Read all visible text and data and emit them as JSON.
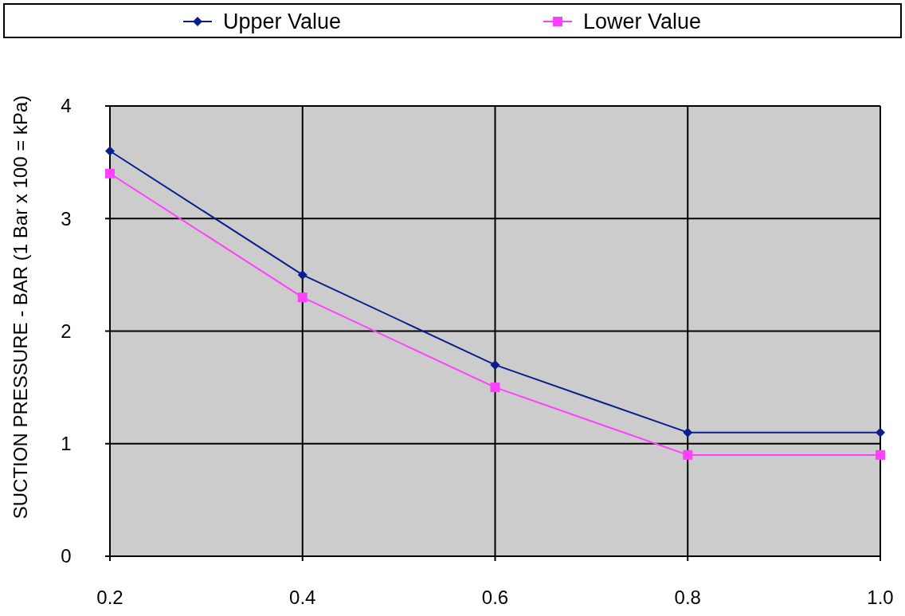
{
  "chart_data": {
    "type": "line",
    "ylabel": "SUCTION PRESSURE - BAR (1 Bar x 100 = kPa)",
    "x": [
      0.2,
      0.4,
      0.6,
      0.8,
      1.0
    ],
    "series": [
      {
        "name": "Upper Value",
        "color": "#0a1e8c",
        "marker": "diamond",
        "values": [
          3.6,
          2.5,
          1.7,
          1.1,
          1.1
        ]
      },
      {
        "name": "Lower Value",
        "color": "#ff40ff",
        "marker": "square",
        "values": [
          3.4,
          2.3,
          1.5,
          0.9,
          0.9
        ]
      }
    ],
    "xlim": [
      0.2,
      1.0
    ],
    "xticks": [
      0.2,
      0.4,
      0.6,
      0.8,
      {
        "value": 1.0,
        "label": "1.0"
      }
    ],
    "ylim": [
      0,
      4
    ],
    "yticks": [
      0,
      1,
      2,
      3,
      4
    ],
    "grid": true,
    "legend": "top"
  }
}
